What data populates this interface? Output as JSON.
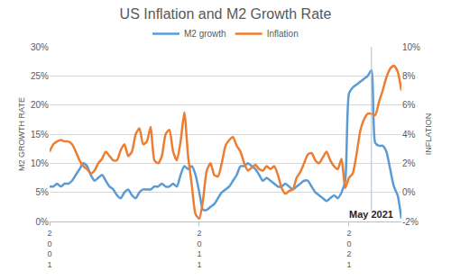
{
  "chart_data": {
    "type": "line",
    "title": "US Inflation and M2 Growth Rate",
    "categories": [
      "2001",
      null,
      null,
      null,
      null,
      null,
      null,
      null,
      null,
      null,
      null,
      null,
      null,
      null,
      null,
      null,
      null,
      null,
      null,
      null,
      null,
      null,
      null,
      null,
      null,
      null,
      null,
      null,
      null,
      null,
      null,
      null,
      null,
      null,
      null,
      null,
      null,
      null,
      null,
      null,
      "2011",
      null,
      null,
      null,
      null,
      null,
      null,
      null,
      null,
      null,
      null,
      null,
      null,
      null,
      null,
      null,
      null,
      null,
      null,
      null,
      null,
      null,
      null,
      null,
      null,
      null,
      null,
      null,
      null,
      null,
      null,
      null,
      null,
      null,
      null,
      null,
      null,
      null,
      null,
      null,
      "2021",
      null,
      null,
      null,
      null,
      null,
      null,
      null,
      null,
      null,
      null,
      null,
      null,
      null,
      null
    ],
    "series": [
      {
        "name": "M2 growth",
        "color": "#5b9bd5",
        "values": [
          6,
          6,
          6.5,
          6,
          6.5,
          6.5,
          7,
          8,
          9,
          10,
          9.5,
          8,
          7,
          7.5,
          8,
          7,
          6,
          5.5,
          4.5,
          4,
          5,
          5.5,
          4.5,
          4,
          5,
          5.5,
          5.5,
          5.5,
          6,
          6,
          6.5,
          6,
          6,
          6.5,
          6,
          8,
          9.5,
          9,
          9.5,
          8,
          5,
          2,
          2,
          2.5,
          3,
          4,
          5,
          5.5,
          6,
          7,
          8,
          9.5,
          9.5,
          10,
          9.5,
          9,
          8,
          7,
          7.5,
          7,
          6.5,
          6,
          6,
          6.5,
          6,
          5.5,
          6,
          6.5,
          7,
          7,
          6,
          5,
          4.5,
          4,
          3.5,
          4,
          4.5,
          4,
          5,
          7,
          22,
          23,
          23.5,
          24,
          24.5,
          25,
          26,
          13.5,
          13,
          13,
          12,
          9,
          6,
          4.5,
          0.5
        ]
      },
      {
        "name": "Inflation",
        "color": "#ed7d31",
        "axis": "y2",
        "values": [
          2.8,
          3.3,
          3.5,
          3.6,
          3.5,
          3.5,
          3.3,
          2.8,
          2.2,
          1.8,
          1.6,
          1.3,
          1.5,
          2,
          2.3,
          2.8,
          2.5,
          2.2,
          2.2,
          2.9,
          3.3,
          2.5,
          2.8,
          4,
          4.4,
          3.3,
          3.5,
          4.5,
          2.2,
          2,
          2.5,
          4,
          4.3,
          2.8,
          2.2,
          3.5,
          5.5,
          2.5,
          0.5,
          -1.5,
          -1.8,
          -0.5,
          1.5,
          2,
          1.2,
          1.1,
          2,
          3.2,
          3.6,
          3.8,
          3.2,
          2.8,
          2,
          1.5,
          1.7,
          1.9,
          1.6,
          1.5,
          1.8,
          1.6,
          1.8,
          1.2,
          0.3,
          -0.1,
          0.1,
          0.2,
          1,
          1.4,
          2,
          2.6,
          2.7,
          2.2,
          2,
          2.4,
          2.8,
          2.2,
          1.8,
          1.6,
          2.3,
          0.3,
          1,
          1.3,
          2.6,
          4.2,
          5,
          5.4,
          5.4,
          5.3,
          6.2,
          7,
          7.9,
          8.5,
          8.7,
          8.3,
          7
        ]
      }
    ],
    "y_label": "M2 GROWTH RATE",
    "y2_label": "INFLATION",
    "ylim": [
      0,
      30
    ],
    "yticks": [
      {
        "value": 0,
        "label": "0%"
      },
      {
        "value": 5,
        "label": "5%"
      },
      {
        "value": 10,
        "label": "10%"
      },
      {
        "value": 15,
        "label": "15%"
      },
      {
        "value": 20,
        "label": "20%"
      },
      {
        "value": 25,
        "label": "25%"
      },
      {
        "value": 30,
        "label": "30%"
      }
    ],
    "y2lim": [
      -2,
      10
    ],
    "y2ticks": [
      {
        "value": -2,
        "label": "-2%"
      },
      {
        "value": 0,
        "label": "0%"
      },
      {
        "value": 2,
        "label": "2%"
      },
      {
        "value": 4,
        "label": "4%"
      },
      {
        "value": 6,
        "label": "6%"
      },
      {
        "value": 8,
        "label": "8%"
      },
      {
        "value": 10,
        "label": "10%"
      }
    ],
    "grid": true,
    "legend": "top",
    "annotations": [
      {
        "text": "May 2021",
        "x": 86
      }
    ]
  }
}
